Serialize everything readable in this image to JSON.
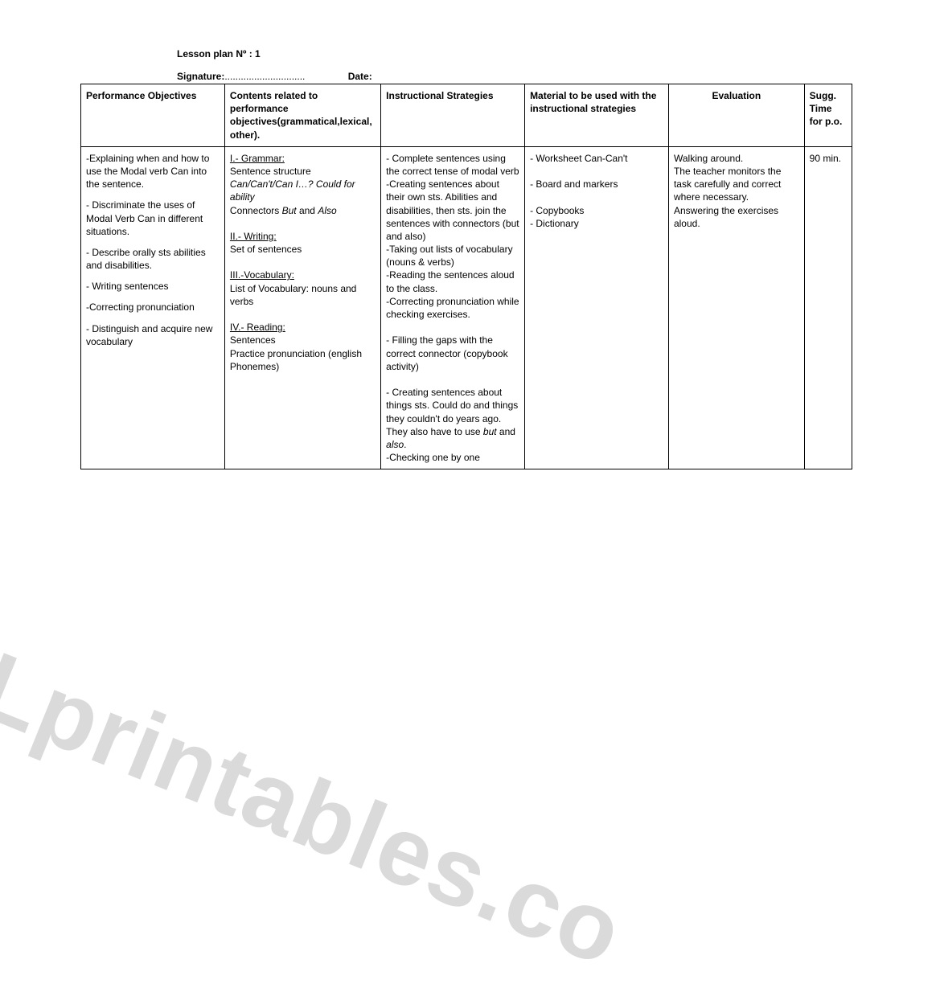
{
  "title": "Lesson plan Nº : 1",
  "signature_label": "Signature:",
  "signature_dots": "..............................",
  "date_label": "Date:",
  "watermark_text": "SLprintables.co",
  "table": {
    "headers": {
      "objectives": "Performance Objectives",
      "contents": "Contents related to performance objectives(grammatical,lexical, other).",
      "strategies": "Instructional Strategies",
      "materials": "Material to be used with the instructional strategies",
      "evaluation": "Evaluation",
      "time": "Sugg. Time for p.o."
    },
    "row": {
      "objectives": [
        "-Explaining when and how to use the Modal verb Can into the sentence.",
        "- Discriminate the uses of Modal Verb Can  in different situations.",
        "- Describe orally  sts abilities and disabilities.",
        "- Writing sentences",
        "-Correcting pronunciation",
        "- Distinguish and acquire new vocabulary"
      ],
      "contents": {
        "grammar_head": "I.- Grammar:",
        "grammar_l1": "Sentence structure",
        "grammar_l2_italic": "Can/Can't/Can I…?  Could for ability",
        "grammar_l3_a": "Connectors ",
        "grammar_l3_b": "But",
        "grammar_l3_c": "  and  ",
        "grammar_l3_d": "Also",
        "writing_head": "II.- Writing:",
        "writing_body": "Set of sentences",
        "vocab_head": "III.-Vocabulary:",
        "vocab_body": " List of Vocabulary: nouns and verbs",
        "reading_head": "IV.- Reading:",
        "reading_b1": "Sentences",
        "reading_b2": "Practice pronunciation (english Phonemes)"
      },
      "strategies": [
        "- Complete sentences using the correct tense of modal verb",
        "-Creating sentences about their own sts. Abilities and disabilities, then sts.  join the sentences with connectors (but and also)",
        "-Taking out lists of vocabulary (nouns & verbs)",
        "-Reading the sentences aloud to the class.",
        "-Correcting pronunciation while checking exercises.",
        "",
        "- Filling the gaps with the correct connector (copybook activity)",
        "",
        "- Creating sentences about things sts. Could do and things they couldn't do years ago. They also have to use but and also.",
        "-Checking one by one"
      ],
      "strategies_last": {
        "prefix": "- Creating sentences about things sts. Could do and things they couldn't do years ago. They also have to use ",
        "but": "but",
        "and": " and ",
        "also": "also",
        "suffix": "."
      },
      "materials": [
        "- Worksheet Can-Can't",
        "",
        "- Board and markers",
        "",
        "- Copybooks",
        "- Dictionary"
      ],
      "evaluation": [
        "Walking around.",
        "The teacher monitors  the task carefully and correct where necessary.",
        "Answering the exercises aloud."
      ],
      "time": "90 min."
    }
  }
}
